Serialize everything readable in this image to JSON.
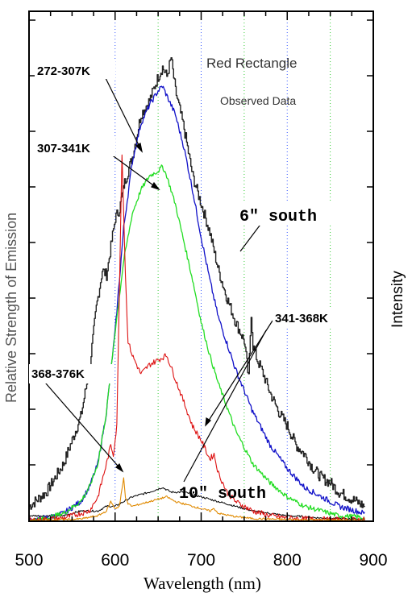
{
  "chart_data": {
    "type": "line",
    "title": "Red Rectangle",
    "subtitle": "Observed Data",
    "xlabel": "Wavelength (nm)",
    "ylabel_left": "Relative Strength of Emission",
    "ylabel_right": "Intensity",
    "xlim": [
      500,
      900
    ],
    "ylim": [
      0,
      1.0
    ],
    "x_ticks": [
      500,
      600,
      700,
      800,
      900
    ],
    "grid": "vertical dotted lines (blue at 600, 700, 800; green at 650, 750, 850)",
    "annotations": [
      {
        "text": "272-307K",
        "target_series": "272-307K"
      },
      {
        "text": "307-341K",
        "target_series": "307-341K"
      },
      {
        "text": "6\" south",
        "target_series": "6\" south (observed)"
      },
      {
        "text": "341-368K",
        "target_series": "341-368K"
      },
      {
        "text": "368-376K",
        "target_series": "368-376K"
      },
      {
        "text": "10\" south",
        "target_series": "10\" south (observed)"
      }
    ],
    "colors": {
      "272-307K": "#1010c8",
      "307-341K": "#22dd22",
      "341-368K": "#dd1111",
      "368-376K": "#e08a00",
      "obs6": "#222222",
      "obs10": "#000000",
      "grid_blue": "#3355ff",
      "grid_green": "#33cc33"
    },
    "series": [
      {
        "name": "6\" south",
        "key": "obs6",
        "x": [
          500,
          520,
          540,
          560,
          570,
          578,
          585,
          590,
          595,
          600,
          605,
          610,
          620,
          630,
          640,
          650,
          655,
          660,
          665,
          670,
          680,
          690,
          700,
          710,
          720,
          730,
          740,
          750,
          755,
          758,
          760,
          765,
          770,
          780,
          790,
          800,
          810,
          820,
          830,
          840,
          850,
          860,
          870,
          880,
          890
        ],
        "y": [
          0.03,
          0.06,
          0.12,
          0.22,
          0.32,
          0.45,
          0.53,
          0.52,
          0.58,
          0.64,
          0.66,
          0.71,
          0.77,
          0.86,
          0.89,
          0.94,
          0.96,
          0.94,
          0.98,
          0.91,
          0.83,
          0.73,
          0.67,
          0.61,
          0.53,
          0.47,
          0.42,
          0.38,
          0.3,
          0.44,
          0.37,
          0.34,
          0.32,
          0.27,
          0.23,
          0.2,
          0.16,
          0.14,
          0.11,
          0.09,
          0.08,
          0.06,
          0.05,
          0.04,
          0.03
        ]
      },
      {
        "name": "10\" south",
        "key": "obs10",
        "x": [
          500,
          520,
          540,
          560,
          580,
          590,
          600,
          610,
          620,
          640,
          655,
          665,
          680,
          700,
          720,
          740,
          760,
          780,
          800,
          820,
          840,
          860,
          880,
          890
        ],
        "y": [
          0.01,
          0.01,
          0.01,
          0.02,
          0.02,
          0.03,
          0.03,
          0.04,
          0.05,
          0.06,
          0.07,
          0.06,
          0.06,
          0.05,
          0.04,
          0.03,
          0.02,
          0.015,
          0.01,
          0.008,
          0.005,
          0.004,
          0.003,
          0.002
        ]
      },
      {
        "name": "272-307K",
        "x": [
          500,
          520,
          540,
          560,
          570,
          580,
          590,
          600,
          610,
          620,
          630,
          640,
          650,
          655,
          660,
          670,
          680,
          690,
          700,
          710,
          720,
          740,
          760,
          780,
          800,
          820,
          840,
          860,
          880,
          890
        ],
        "y": [
          0.0,
          0.005,
          0.015,
          0.04,
          0.07,
          0.12,
          0.23,
          0.4,
          0.62,
          0.76,
          0.84,
          0.88,
          0.91,
          0.92,
          0.9,
          0.86,
          0.79,
          0.7,
          0.6,
          0.51,
          0.43,
          0.32,
          0.23,
          0.16,
          0.11,
          0.07,
          0.05,
          0.03,
          0.02,
          0.015
        ]
      },
      {
        "name": "307-341K",
        "x": [
          500,
          520,
          540,
          560,
          570,
          580,
          590,
          600,
          610,
          620,
          630,
          640,
          650,
          655,
          660,
          670,
          680,
          690,
          700,
          710,
          720,
          740,
          760,
          780,
          800,
          820,
          840,
          860,
          880,
          890
        ],
        "y": [
          0.0,
          0.005,
          0.015,
          0.04,
          0.07,
          0.12,
          0.23,
          0.4,
          0.55,
          0.65,
          0.7,
          0.73,
          0.74,
          0.75,
          0.73,
          0.67,
          0.59,
          0.51,
          0.42,
          0.35,
          0.29,
          0.19,
          0.12,
          0.08,
          0.05,
          0.03,
          0.02,
          0.01,
          0.008,
          0.005
        ]
      },
      {
        "name": "341-368K",
        "x": [
          500,
          540,
          570,
          580,
          590,
          595,
          598,
          602,
          608,
          612,
          615,
          620,
          630,
          640,
          650,
          660,
          670,
          680,
          690,
          700,
          710,
          715,
          720,
          730,
          740,
          760,
          780,
          800,
          820,
          840,
          860,
          880,
          890
        ],
        "y": [
          0.0,
          0.005,
          0.02,
          0.05,
          0.12,
          0.16,
          0.14,
          0.2,
          0.78,
          0.52,
          0.38,
          0.35,
          0.31,
          0.33,
          0.34,
          0.35,
          0.3,
          0.25,
          0.2,
          0.17,
          0.13,
          0.14,
          0.1,
          0.06,
          0.04,
          0.02,
          0.01,
          0.005,
          0.003,
          0.002,
          0.001,
          0.001,
          0.001
        ]
      },
      {
        "name": "368-376K",
        "x": [
          500,
          560,
          580,
          590,
          595,
          600,
          605,
          610,
          612,
          615,
          620,
          630,
          640,
          650,
          660,
          670,
          680,
          700,
          710,
          715,
          720,
          740,
          760,
          800,
          850,
          890
        ],
        "y": [
          0.0,
          0.003,
          0.01,
          0.02,
          0.04,
          0.025,
          0.03,
          0.09,
          0.05,
          0.035,
          0.03,
          0.035,
          0.04,
          0.045,
          0.05,
          0.04,
          0.035,
          0.025,
          0.02,
          0.025,
          0.015,
          0.008,
          0.004,
          0.002,
          0.001,
          0.0
        ]
      }
    ]
  }
}
